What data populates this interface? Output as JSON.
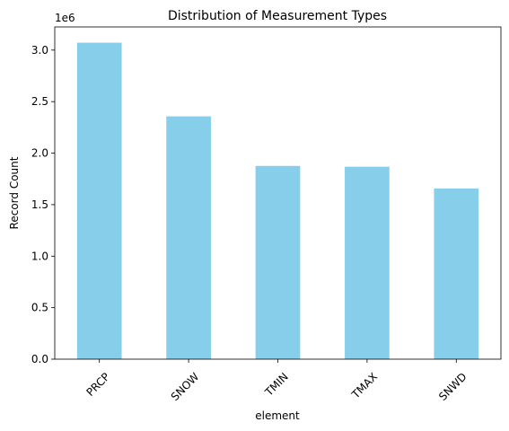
{
  "chart_data": {
    "type": "bar",
    "title": "Distribution of Measurement Types",
    "xlabel": "element",
    "ylabel": "Record Count",
    "y_offset_label": "1e6",
    "y_scale": 1000000,
    "categories": [
      "PRCP",
      "SNOW",
      "TMIN",
      "TMAX",
      "SNWD"
    ],
    "values": [
      3072000,
      2357000,
      1876000,
      1868000,
      1657000
    ],
    "ylim": [
      0,
      3225000
    ],
    "yticks": [
      0,
      0.5,
      1.0,
      1.5,
      2.0,
      2.5,
      3.0
    ],
    "ytick_labels": [
      "0.0",
      "0.5",
      "1.0",
      "1.5",
      "2.0",
      "2.5",
      "3.0"
    ],
    "xtick_rotation": 45,
    "grid": false,
    "bar_color": "#87ceeb"
  }
}
